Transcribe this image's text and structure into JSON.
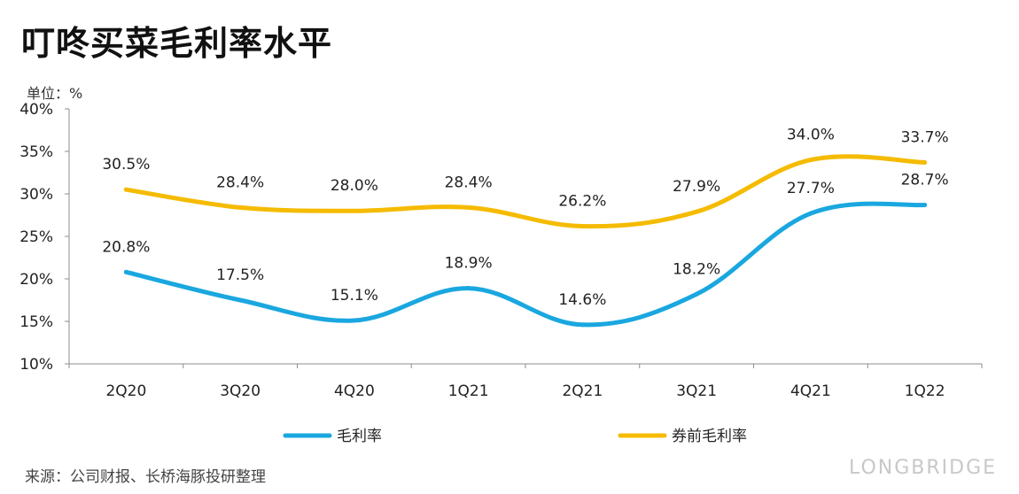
{
  "title": "叮咚买菜毛利率水平",
  "unit_label": "单位：%",
  "source": "来源：公司财报、长桥海豚投研整理",
  "brand_text": "LONGBRIDGE",
  "colors": {
    "series1": "#1aa7e0",
    "series2": "#f5bb00",
    "axis": "#8c8c8c"
  },
  "chart_data": {
    "type": "line",
    "categories": [
      "2Q20",
      "3Q20",
      "4Q20",
      "1Q21",
      "2Q21",
      "3Q21",
      "4Q21",
      "1Q22"
    ],
    "ylim": [
      10,
      40
    ],
    "yticks": [
      10,
      15,
      20,
      25,
      30,
      35,
      40
    ],
    "ytick_labels": [
      "10%",
      "15%",
      "20%",
      "25%",
      "30%",
      "35%",
      "40%"
    ],
    "grid": false,
    "legend_position": "bottom",
    "series": [
      {
        "name": "毛利率",
        "values": [
          20.8,
          17.5,
          15.1,
          18.9,
          14.6,
          18.2,
          27.7,
          28.7
        ],
        "labels": [
          "20.8%",
          "17.5%",
          "15.1%",
          "18.9%",
          "14.6%",
          "18.2%",
          "27.7%",
          "28.7%"
        ]
      },
      {
        "name": "券前毛利率",
        "values": [
          30.5,
          28.4,
          28.0,
          28.4,
          26.2,
          27.9,
          34.0,
          33.7
        ],
        "labels": [
          "30.5%",
          "28.4%",
          "28.0%",
          "28.4%",
          "26.2%",
          "27.9%",
          "34.0%",
          "33.7%"
        ]
      }
    ]
  }
}
